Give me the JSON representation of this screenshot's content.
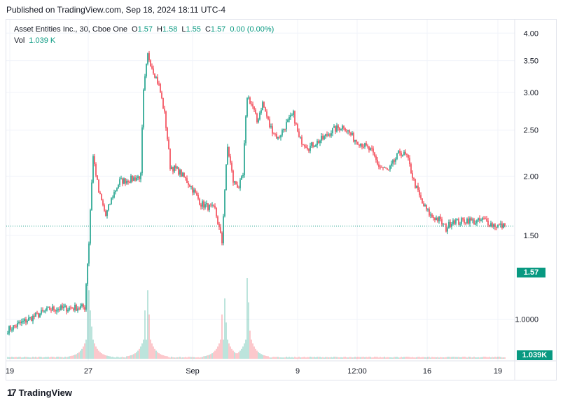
{
  "header": {
    "published": "Published on TradingView.com, Sep 18, 2024 18:11 UTC-4"
  },
  "legend": {
    "symbol": "Asset Entities Inc., 30, Cboe One",
    "o_label": "O",
    "o_value": "1.57",
    "h_label": "H",
    "h_value": "1.58",
    "l_label": "L",
    "l_value": "1.55",
    "c_label": "C",
    "c_value": "1.57",
    "change": "0.00 (0.00%)",
    "vol_label": "Vol",
    "vol_value": "1.039 K"
  },
  "badges": {
    "price": "1.57",
    "volume": "1.039K"
  },
  "footer": {
    "brand": "TradingView"
  },
  "colors": {
    "up": "#089981",
    "down": "#f23645",
    "last_line": "#089981",
    "grid": "#f0f3fa"
  },
  "chart_data": {
    "type": "candlestick",
    "y_axis": {
      "scale": "log",
      "min": 0.86,
      "max": 4.1,
      "ticks": [
        "4.00",
        "3.50",
        "3.00",
        "2.50",
        "2.00",
        "1.50",
        "1.0000"
      ]
    },
    "x_axis": {
      "ticks": [
        "19",
        "27",
        "Sep",
        "9",
        "12:00",
        "16",
        "19"
      ]
    },
    "last_price": 1.57,
    "last_volume": "1.039K",
    "anchors": [
      {
        "i": 0,
        "p": 0.95
      },
      {
        "i": 30,
        "p": 1.05
      },
      {
        "i": 55,
        "p": 1.06
      },
      {
        "i": 58,
        "p": 1.45
      },
      {
        "i": 61,
        "p": 2.2
      },
      {
        "i": 65,
        "p": 1.85
      },
      {
        "i": 70,
        "p": 1.65
      },
      {
        "i": 75,
        "p": 1.82
      },
      {
        "i": 80,
        "p": 1.95
      },
      {
        "i": 88,
        "p": 1.97
      },
      {
        "i": 95,
        "p": 2.0
      },
      {
        "i": 97,
        "p": 3.0
      },
      {
        "i": 100,
        "p": 3.6
      },
      {
        "i": 103,
        "p": 3.4
      },
      {
        "i": 108,
        "p": 3.1
      },
      {
        "i": 112,
        "p": 2.7
      },
      {
        "i": 116,
        "p": 2.1
      },
      {
        "i": 122,
        "p": 2.05
      },
      {
        "i": 130,
        "p": 1.92
      },
      {
        "i": 138,
        "p": 1.75
      },
      {
        "i": 148,
        "p": 1.7
      },
      {
        "i": 153,
        "p": 1.45
      },
      {
        "i": 157,
        "p": 2.3
      },
      {
        "i": 161,
        "p": 1.95
      },
      {
        "i": 165,
        "p": 1.9
      },
      {
        "i": 168,
        "p": 2.0
      },
      {
        "i": 171,
        "p": 2.95
      },
      {
        "i": 175,
        "p": 2.8
      },
      {
        "i": 178,
        "p": 2.6
      },
      {
        "i": 182,
        "p": 2.85
      },
      {
        "i": 187,
        "p": 2.55
      },
      {
        "i": 193,
        "p": 2.4
      },
      {
        "i": 198,
        "p": 2.55
      },
      {
        "i": 204,
        "p": 2.7
      },
      {
        "i": 208,
        "p": 2.4
      },
      {
        "i": 215,
        "p": 2.3
      },
      {
        "i": 225,
        "p": 2.4
      },
      {
        "i": 232,
        "p": 2.5
      },
      {
        "i": 240,
        "p": 2.55
      },
      {
        "i": 247,
        "p": 2.4
      },
      {
        "i": 252,
        "p": 2.35
      },
      {
        "i": 260,
        "p": 2.25
      },
      {
        "i": 265,
        "p": 2.1
      },
      {
        "i": 272,
        "p": 2.05
      },
      {
        "i": 280,
        "p": 2.25
      },
      {
        "i": 285,
        "p": 2.2
      },
      {
        "i": 290,
        "p": 1.95
      },
      {
        "i": 296,
        "p": 1.75
      },
      {
        "i": 302,
        "p": 1.65
      },
      {
        "i": 308,
        "p": 1.62
      },
      {
        "i": 313,
        "p": 1.55
      },
      {
        "i": 318,
        "p": 1.62
      },
      {
        "i": 322,
        "p": 1.6
      },
      {
        "i": 328,
        "p": 1.62
      },
      {
        "i": 334,
        "p": 1.6
      },
      {
        "i": 340,
        "p": 1.62
      },
      {
        "i": 346,
        "p": 1.58
      },
      {
        "i": 354,
        "p": 1.57
      }
    ],
    "volume_spikes": [
      {
        "i": 57,
        "v": 1.0
      },
      {
        "i": 58,
        "v": 0.85
      },
      {
        "i": 59,
        "v": 0.6
      },
      {
        "i": 60,
        "v": 0.4
      },
      {
        "i": 98,
        "v": 0.6
      },
      {
        "i": 100,
        "v": 0.85
      },
      {
        "i": 101,
        "v": 0.55
      },
      {
        "i": 153,
        "v": 0.55
      },
      {
        "i": 155,
        "v": 0.75
      },
      {
        "i": 156,
        "v": 0.45
      },
      {
        "i": 171,
        "v": 1.0
      },
      {
        "i": 172,
        "v": 0.7
      },
      {
        "i": 173,
        "v": 0.35
      }
    ]
  }
}
